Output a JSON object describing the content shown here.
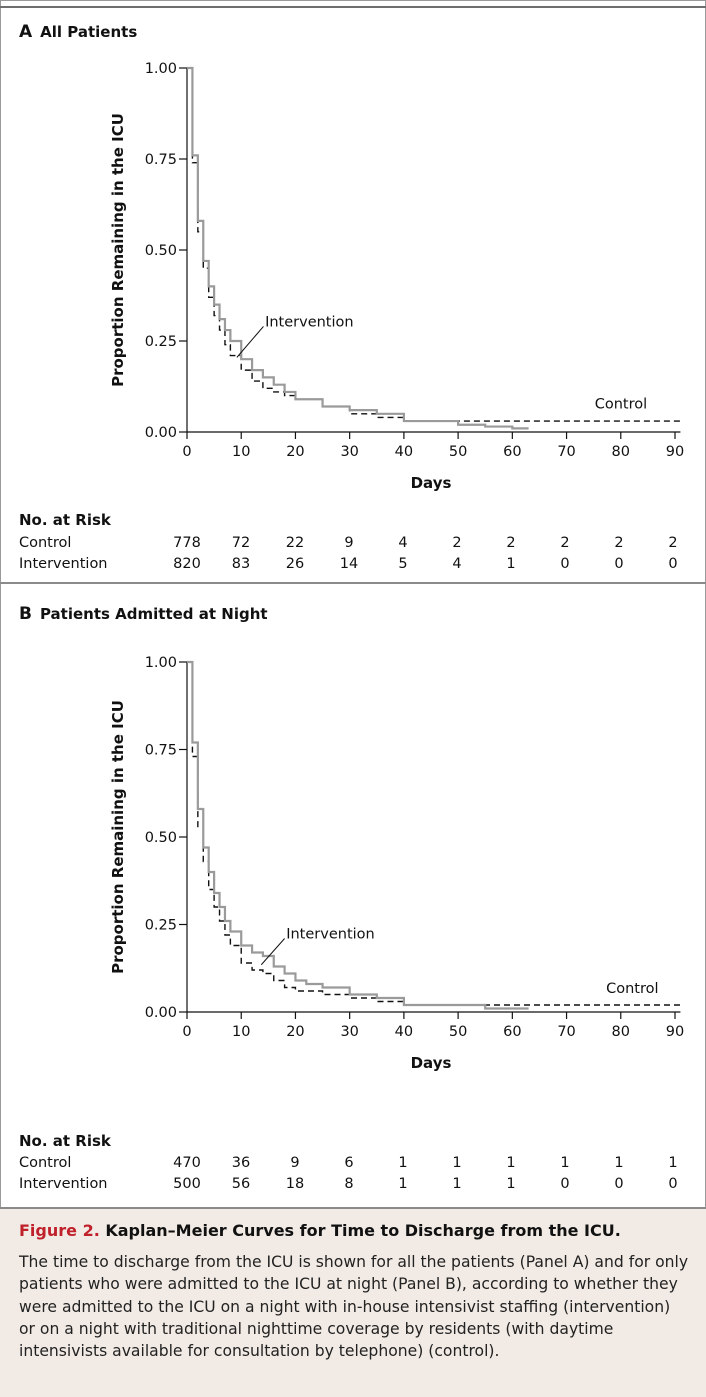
{
  "panels": [
    {
      "letter": "A",
      "title": "All Patients",
      "risk_header": "No. at Risk",
      "risk_rows": [
        {
          "label": "Control",
          "values": [
            "778",
            "72",
            "22",
            "9",
            "4",
            "2",
            "2",
            "2",
            "2",
            "2"
          ]
        },
        {
          "label": "Intervention",
          "values": [
            "820",
            "83",
            "26",
            "14",
            "5",
            "4",
            "1",
            "0",
            "0",
            "0"
          ]
        }
      ]
    },
    {
      "letter": "B",
      "title": "Patients Admitted at Night",
      "risk_header": "No. at Risk",
      "risk_rows": [
        {
          "label": "Control",
          "values": [
            "470",
            "36",
            "9",
            "6",
            "1",
            "1",
            "1",
            "1",
            "1",
            "1"
          ]
        },
        {
          "label": "Intervention",
          "values": [
            "500",
            "56",
            "18",
            "8",
            "1",
            "1",
            "1",
            "0",
            "0",
            "0"
          ]
        }
      ]
    }
  ],
  "chart_data": [
    {
      "type": "line",
      "title": "A All Patients",
      "xlabel": "Days",
      "ylabel": "Proportion Remaining in the ICU",
      "xlim": [
        0,
        90
      ],
      "ylim": [
        0,
        1
      ],
      "xticks": [
        "0",
        "10",
        "20",
        "30",
        "40",
        "50",
        "60",
        "70",
        "80",
        "90"
      ],
      "yticks": [
        "0.00",
        "0.25",
        "0.50",
        "0.75",
        "1.00"
      ],
      "annotations": [
        "Intervention",
        "Control"
      ],
      "series": [
        {
          "name": "Control",
          "style": "dashed",
          "color": "#111111",
          "x": [
            0,
            1,
            2,
            3,
            4,
            5,
            6,
            7,
            8,
            10,
            12,
            14,
            16,
            18,
            20,
            25,
            30,
            35,
            40,
            50,
            60,
            70,
            80,
            91
          ],
          "y": [
            1.0,
            0.74,
            0.55,
            0.45,
            0.37,
            0.32,
            0.28,
            0.24,
            0.21,
            0.17,
            0.14,
            0.12,
            0.11,
            0.1,
            0.09,
            0.07,
            0.05,
            0.04,
            0.03,
            0.03,
            0.03,
            0.03,
            0.03,
            0.03
          ]
        },
        {
          "name": "Intervention",
          "style": "solid",
          "color": "#9a9a9a",
          "x": [
            0,
            1,
            2,
            3,
            4,
            5,
            6,
            7,
            8,
            10,
            12,
            14,
            16,
            18,
            20,
            25,
            30,
            35,
            40,
            50,
            55,
            60,
            63
          ],
          "y": [
            1.0,
            0.76,
            0.58,
            0.47,
            0.4,
            0.35,
            0.31,
            0.28,
            0.25,
            0.2,
            0.17,
            0.15,
            0.13,
            0.11,
            0.09,
            0.07,
            0.06,
            0.05,
            0.03,
            0.02,
            0.015,
            0.01,
            0.01
          ]
        }
      ]
    },
    {
      "type": "line",
      "title": "B Patients Admitted at Night",
      "xlabel": "Days",
      "ylabel": "Proportion Remaining in the ICU",
      "xlim": [
        0,
        90
      ],
      "ylim": [
        0,
        1
      ],
      "xticks": [
        "0",
        "10",
        "20",
        "30",
        "40",
        "50",
        "60",
        "70",
        "80",
        "90"
      ],
      "yticks": [
        "0.00",
        "0.25",
        "0.50",
        "0.75",
        "1.00"
      ],
      "annotations": [
        "Intervention",
        "Control"
      ],
      "series": [
        {
          "name": "Control",
          "style": "dashed",
          "color": "#111111",
          "x": [
            0,
            1,
            2,
            3,
            4,
            5,
            6,
            7,
            8,
            10,
            12,
            14,
            16,
            18,
            20,
            25,
            30,
            35,
            40,
            50,
            60,
            70,
            80,
            91
          ],
          "y": [
            1.0,
            0.73,
            0.53,
            0.43,
            0.35,
            0.3,
            0.26,
            0.22,
            0.19,
            0.14,
            0.12,
            0.11,
            0.09,
            0.07,
            0.06,
            0.05,
            0.04,
            0.03,
            0.02,
            0.02,
            0.02,
            0.02,
            0.02,
            0.02
          ]
        },
        {
          "name": "Intervention",
          "style": "solid",
          "color": "#9a9a9a",
          "x": [
            0,
            1,
            2,
            3,
            4,
            5,
            6,
            7,
            8,
            10,
            12,
            14,
            16,
            18,
            20,
            22,
            25,
            30,
            35,
            40,
            50,
            55,
            60,
            63
          ],
          "y": [
            1.0,
            0.77,
            0.58,
            0.47,
            0.4,
            0.34,
            0.3,
            0.26,
            0.23,
            0.19,
            0.17,
            0.16,
            0.13,
            0.11,
            0.09,
            0.08,
            0.07,
            0.05,
            0.04,
            0.02,
            0.02,
            0.01,
            0.01,
            0.01
          ]
        }
      ]
    }
  ],
  "caption": {
    "figure_label": "Figure 2.",
    "title": "Kaplan–Meier Curves for Time to Discharge from the ICU.",
    "text": "The time to discharge from the ICU is shown for all the patients (Panel A) and for only patients who were admitted to the ICU at night (Panel B), according to whether they were admitted to the ICU on a night with in-house intensivist staffing (intervention) or on a night with traditional nighttime coverage by residents (with daytime intensivists available for consultation by telephone) (control)."
  }
}
